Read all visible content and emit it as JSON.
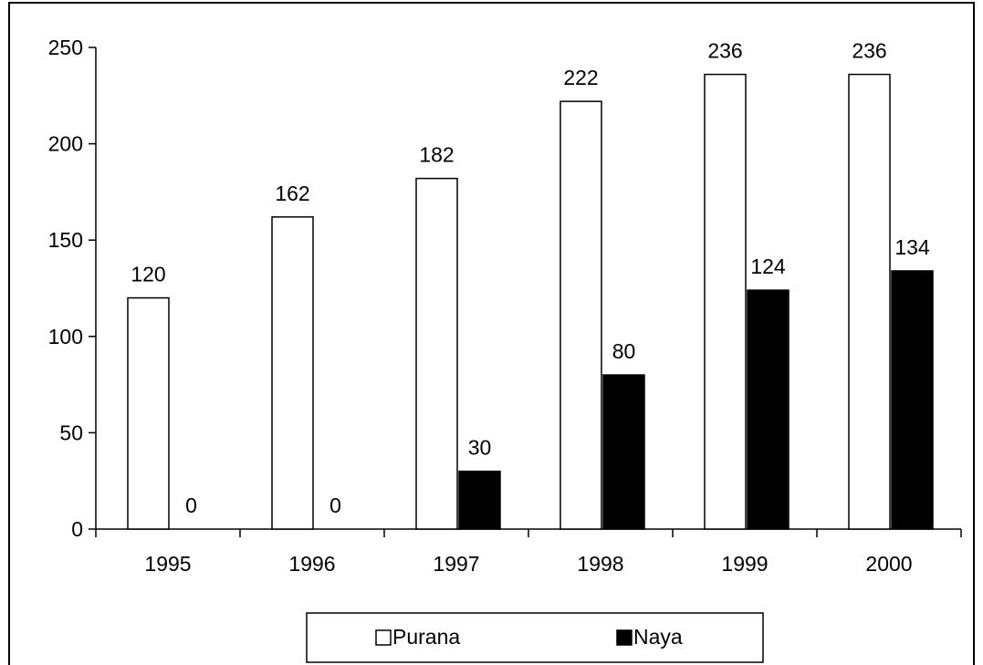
{
  "chart_data": {
    "type": "bar",
    "categories": [
      "1995",
      "1996",
      "1997",
      "1998",
      "1999",
      "2000"
    ],
    "series": [
      {
        "name": "Purana",
        "values": [
          120,
          162,
          182,
          222,
          236,
          236
        ],
        "color": "#ffffff"
      },
      {
        "name": "Naya",
        "values": [
          0,
          0,
          30,
          80,
          124,
          134
        ],
        "color": "#000000"
      }
    ],
    "data_labels": {
      "Purana": [
        "120",
        "162",
        "182",
        "222",
        "236",
        "236"
      ],
      "Naya": [
        "0",
        "0",
        "30",
        "80",
        "124",
        "134"
      ]
    },
    "y_ticks": [
      "0",
      "50",
      "100",
      "150",
      "200",
      "250"
    ],
    "ylim": [
      0,
      250
    ],
    "grid": false,
    "legend": {
      "position": "bottom",
      "items": [
        "Purana",
        "Naya"
      ]
    },
    "title": "",
    "xlabel": "",
    "ylabel": ""
  }
}
